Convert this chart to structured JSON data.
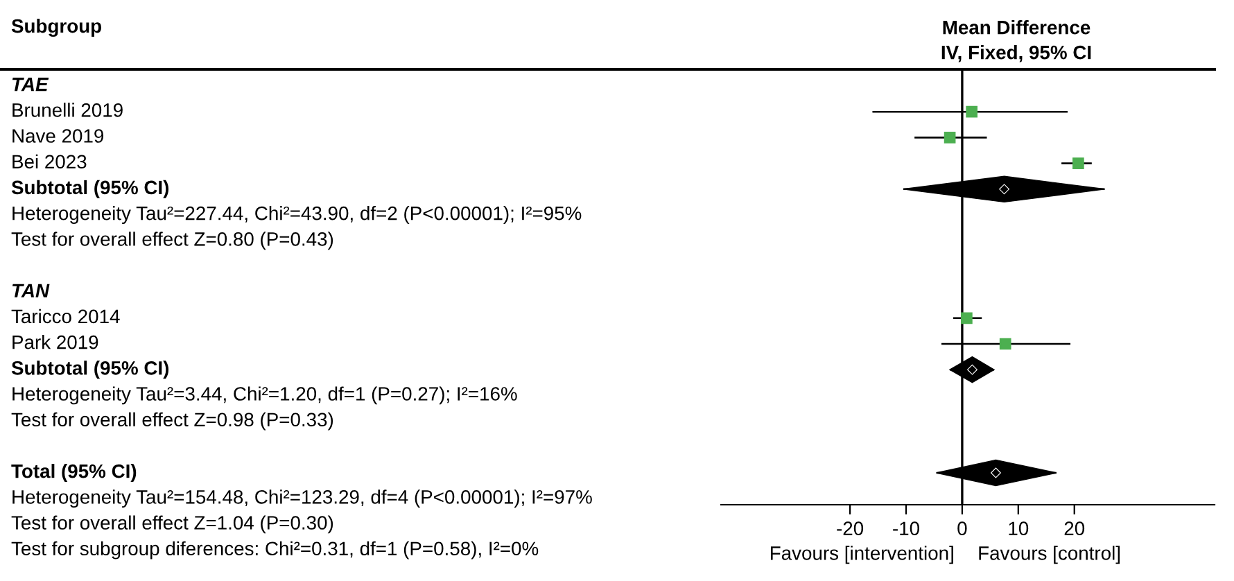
{
  "chart_data": {
    "type": "scatter",
    "orientation": "horizontal",
    "title": "Mean Difference",
    "subtitle": "IV, Fixed, 95% CI",
    "ylabel": "Subgroup",
    "categories": [
      "TAE",
      "Brunelli 2019",
      "Nave 2019",
      "Bei 2023",
      "Subtotal (95% CI)",
      "Heterogeneity Tau²=227.44, Chi²=43.90, df=2 (P<0.00001); I²=95%",
      "Test for overall effect Z=0.80 (P=0.43)",
      null,
      "TAN",
      "Taricco 2014",
      "Park 2019",
      "Subtotal (95% CI)",
      "Heterogeneity Tau²=3.44, Chi²=1.20, df=1 (P=0.27); I²=16%",
      "Test for overall effect Z=0.98 (P=0.33)",
      null,
      "Total (95% CI)",
      "Heterogeneity Tau²=154.48, Chi²=123.29, df=4 (P<0.00001); I²=97%",
      "Test for overall effect Z=1.04 (P=0.30)",
      "Test for subgroup diferences: Chi²=0.31, df=1 (P=0.58), I²=0%"
    ],
    "series": [
      {
        "type": "bar",
        "color": "#000000",
        "base": [
          null,
          -16,
          -8.5,
          17.7,
          null,
          null,
          null,
          null,
          null,
          -1.6,
          -3.7,
          null,
          null,
          null,
          null,
          null,
          null,
          null,
          null
        ],
        "values": [
          null,
          34.8,
          12.9,
          5.4,
          null,
          null,
          null,
          null,
          null,
          5.1,
          23.0,
          null,
          null,
          null,
          null,
          null,
          null,
          null,
          null
        ]
      },
      {
        "type": "scatter",
        "marker": "square",
        "color": "#4caf50",
        "values": [
          null,
          1.7,
          -2.2,
          20.7,
          null,
          null,
          null,
          null,
          null,
          0.8,
          7.7,
          null,
          null,
          null,
          null,
          null,
          null,
          null,
          null
        ]
      },
      {
        "type": "bar",
        "marker": "diamond",
        "color": "#000000",
        "base": [
          null,
          null,
          null,
          null,
          -10.5,
          null,
          null,
          null,
          null,
          null,
          null,
          -2.2,
          null,
          null,
          null,
          -4.6,
          null,
          null,
          null
        ],
        "values": [
          null,
          null,
          null,
          null,
          35.9,
          null,
          null,
          null,
          null,
          null,
          null,
          7.9,
          null,
          null,
          null,
          21.4,
          null,
          null,
          null
        ]
      },
      {
        "type": "scatter",
        "marker": "diamond",
        "color": "#000000",
        "values": [
          null,
          null,
          null,
          null,
          7.5,
          null,
          null,
          null,
          null,
          null,
          null,
          1.8,
          null,
          null,
          null,
          6.0,
          null,
          null,
          null
        ]
      }
    ],
    "xlim": [
      -43,
      45
    ],
    "xticks": [
      -20,
      -10,
      0,
      10,
      20
    ],
    "ref_lines": [
      {
        "axis": "x",
        "value": 0,
        "color": "#000000"
      }
    ],
    "annotations": [
      "Favours [intervention]",
      "Favours [control]"
    ],
    "grid": false,
    "legend": false
  }
}
